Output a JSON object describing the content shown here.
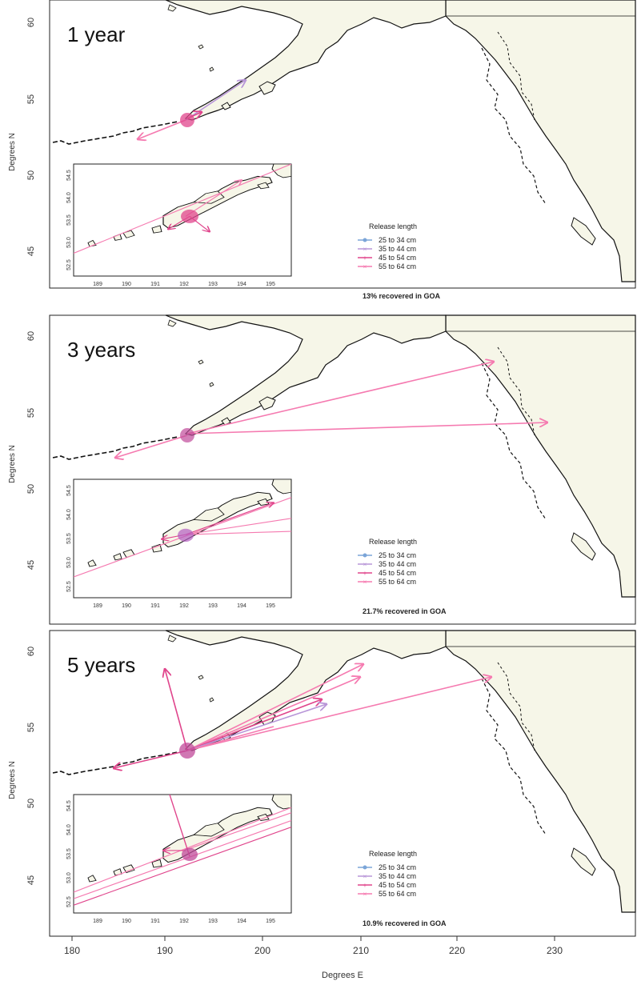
{
  "figure": {
    "xlabel": "Degrees E",
    "x_ticks": [
      "180",
      "190",
      "200",
      "210",
      "220",
      "230"
    ],
    "ylabel": "Degrees N"
  },
  "panels": [
    {
      "label": "1 year",
      "y_ticks": [
        "60",
        "55",
        "50",
        "45"
      ],
      "inset_y_ticks": [
        "54.5",
        "54.0",
        "53.5",
        "53.0",
        "52.5"
      ],
      "inset_x_ticks": [
        "189",
        "190",
        "191",
        "192",
        "193",
        "194",
        "195"
      ],
      "legend_title": "Release length",
      "legend_items": [
        "25 to 34 cm",
        "35 to 44 cm",
        "45 to 54 cm",
        "55 to 64 cm"
      ],
      "recovered_text": "13% recovered in GOA"
    },
    {
      "label": "3 years",
      "y_ticks": [
        "60",
        "55",
        "50",
        "45"
      ],
      "inset_y_ticks": [
        "54.5",
        "54.0",
        "53.5",
        "53.0",
        "52.5"
      ],
      "inset_x_ticks": [
        "189",
        "190",
        "191",
        "192",
        "193",
        "194",
        "195"
      ],
      "legend_title": "Release length",
      "legend_items": [
        "25 to 34 cm",
        "35 to 44 cm",
        "45 to 54 cm",
        "55 to 64 cm"
      ],
      "recovered_text": "21.7% recovered in GOA"
    },
    {
      "label": "5 years",
      "y_ticks": [
        "60",
        "55",
        "50",
        "45"
      ],
      "inset_y_ticks": [
        "54.5",
        "54.0",
        "53.5",
        "53.0",
        "52.5"
      ],
      "inset_x_ticks": [
        "189",
        "190",
        "191",
        "192",
        "193",
        "194",
        "195"
      ],
      "legend_title": "Release length",
      "legend_items": [
        "25 to 34 cm",
        "35 to 44 cm",
        "45 to 54 cm",
        "55 to 64 cm"
      ],
      "recovered_text": "10.9% recovered in GOA"
    }
  ],
  "colors": {
    "land": "#f6f6e8",
    "coast": "#111111",
    "legend_colors": [
      "#7ba5d8",
      "#b896d8",
      "#e0458c",
      "#f57ab0"
    ]
  }
}
